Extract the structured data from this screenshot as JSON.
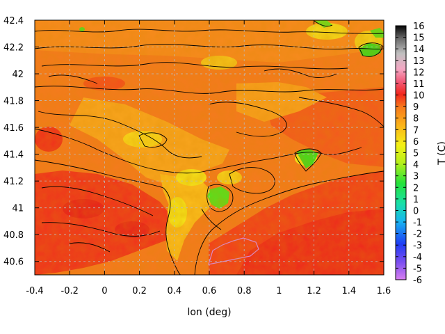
{
  "chart_data": {
    "type": "heatmap",
    "title": "",
    "xlabel": "lon (deg)",
    "ylabel": "",
    "colorbar_label": "T (C)",
    "xlim": [
      -0.4,
      1.6
    ],
    "ylim": [
      40.5,
      42.4
    ],
    "x_ticks": [
      "-0.4",
      "-0.2",
      "0",
      "0.2",
      "0.4",
      "0.6",
      "0.8",
      "1",
      "1.2",
      "1.4",
      "1.6"
    ],
    "y_ticks": [
      "40.6",
      "40.8",
      "41",
      "41.2",
      "41.4",
      "41.6",
      "41.8",
      "42",
      "42.2",
      "42.4"
    ],
    "colorbar_range": [
      -6,
      16
    ],
    "colorbar_ticks": [
      "-6",
      "-5",
      "-4",
      "-3",
      "-2",
      "-1",
      "0",
      "1",
      "2",
      "3",
      "4",
      "5",
      "6",
      "7",
      "8",
      "9",
      "10",
      "11",
      "12",
      "13",
      "14",
      "15",
      "16"
    ],
    "colormap": "rainbow (violet - blue - cyan - green - yellow - orange - red - pink - grey - black)",
    "contours": true,
    "grid": true,
    "approx_regions": [
      {
        "lon": 1.5,
        "lat": 40.6,
        "T": 10
      },
      {
        "lon": 1.2,
        "lat": 40.8,
        "T": 9.5
      },
      {
        "lon": -0.2,
        "lat": 41.0,
        "T": 9.5
      },
      {
        "lon": 0.5,
        "lat": 41.5,
        "T": 7
      },
      {
        "lon": 0.65,
        "lat": 41.05,
        "T": 5
      },
      {
        "lon": 1.2,
        "lat": 41.35,
        "T": 4
      },
      {
        "lon": 1.55,
        "lat": 42.15,
        "T": 4
      },
      {
        "lon": 1.2,
        "lat": 42.35,
        "T": 4
      },
      {
        "lon": 0.8,
        "lat": 42.0,
        "T": 8
      },
      {
        "lon": -0.2,
        "lat": 42.2,
        "T": 8
      }
    ]
  }
}
